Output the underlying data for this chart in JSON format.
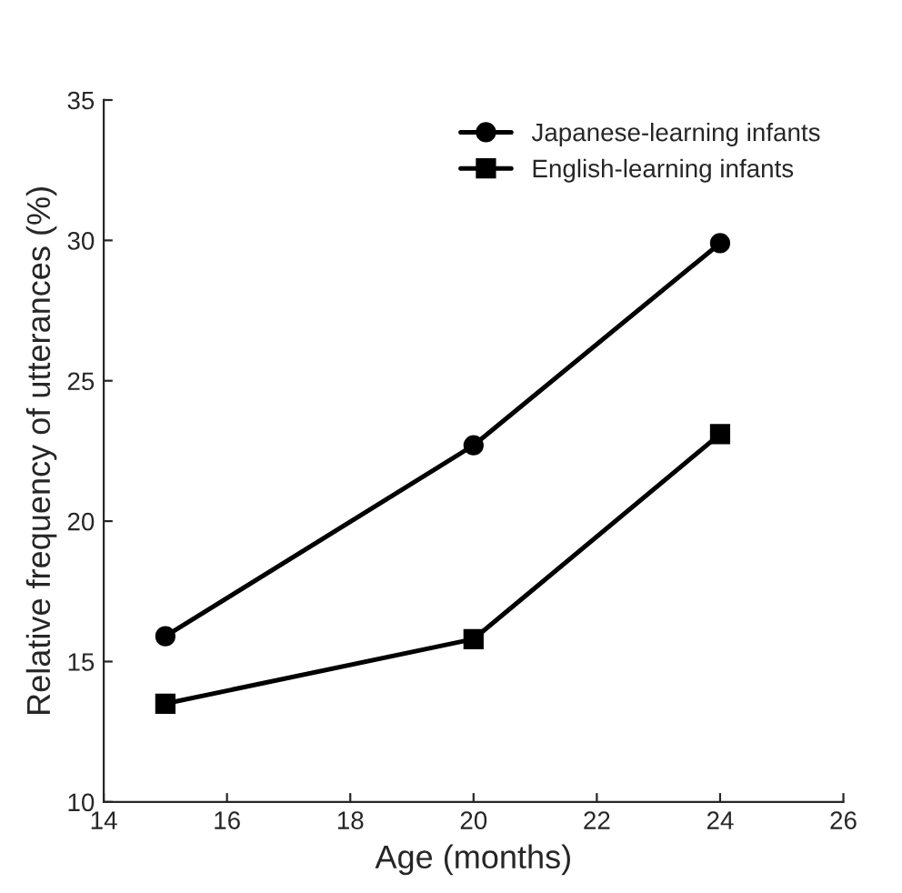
{
  "chart_data": {
    "type": "line",
    "xlabel": "Age (months)",
    "ylabel": "Relative frequency of utterances (%)",
    "xlim": [
      14,
      26
    ],
    "xticks": [
      14,
      16,
      18,
      20,
      22,
      24,
      26
    ],
    "ylim": [
      10,
      35
    ],
    "yticks": [
      10,
      15,
      20,
      25,
      30,
      35
    ],
    "grid": false,
    "legend": "top right",
    "line_style": "solid",
    "series": [
      {
        "name": "Japanese-learning infants",
        "color": "#000000",
        "marker": "circle",
        "x": [
          15,
          20,
          24
        ],
        "values": [
          15.9,
          22.7,
          29.9
        ]
      },
      {
        "name": "English-learning infants",
        "color": "#000000",
        "marker": "square",
        "x": [
          15,
          20,
          24
        ],
        "values": [
          13.5,
          15.8,
          23.1
        ]
      }
    ]
  }
}
